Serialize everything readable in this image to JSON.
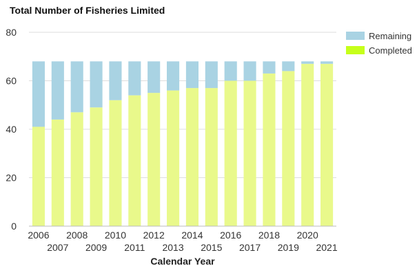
{
  "chart_data": {
    "type": "bar",
    "stacked": true,
    "title": "Total Number of Fisheries Limited",
    "xlabel": "Calendar Year",
    "ylabel": "",
    "ylim": [
      0,
      80
    ],
    "yticks": [
      0,
      20,
      40,
      60,
      80
    ],
    "grid": true,
    "legend_position": "top-right",
    "categories": [
      "2006",
      "2007",
      "2008",
      "2009",
      "2010",
      "2011",
      "2012",
      "2013",
      "2014",
      "2015",
      "2016",
      "2017",
      "2018",
      "2019",
      "2020",
      "2021"
    ],
    "series": [
      {
        "name": "Completed",
        "color": "#e9f98b",
        "legend_color": "#c6ff1a",
        "values": [
          41,
          44,
          47,
          49,
          52,
          54,
          55,
          56,
          57,
          57,
          60,
          60,
          63,
          64,
          67,
          67
        ]
      },
      {
        "name": "Remaining",
        "color": "#a9d3e3",
        "legend_color": "#a9d3e3",
        "values": [
          27,
          24,
          21,
          19,
          16,
          14,
          13,
          12,
          11,
          11,
          8,
          8,
          5,
          4,
          1,
          1
        ]
      }
    ]
  }
}
